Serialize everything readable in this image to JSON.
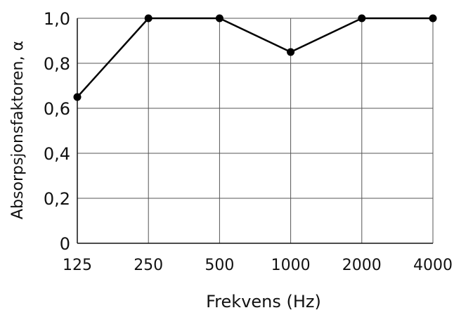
{
  "chart_data": {
    "type": "line",
    "title": "",
    "xlabel": "Frekvens (Hz)",
    "ylabel": "Absorpsjonsfaktoren, α",
    "x_scale": "log2",
    "x": [
      125,
      250,
      500,
      1000,
      2000,
      4000
    ],
    "x_tick_labels": [
      "125",
      "250",
      "500",
      "1000",
      "2000",
      "4000"
    ],
    "y_tick_values": [
      0,
      0.2,
      0.4,
      0.6,
      0.8,
      1.0
    ],
    "y_tick_labels": [
      "0",
      "0,2",
      "0,4",
      "0,6",
      "0,8",
      "1,0"
    ],
    "ylim": [
      0,
      1.0
    ],
    "grid": true,
    "legend": "none",
    "series": [
      {
        "values": [
          0.65,
          1.0,
          1.0,
          0.85,
          1.0,
          1.0
        ],
        "color": "#000000"
      }
    ]
  }
}
